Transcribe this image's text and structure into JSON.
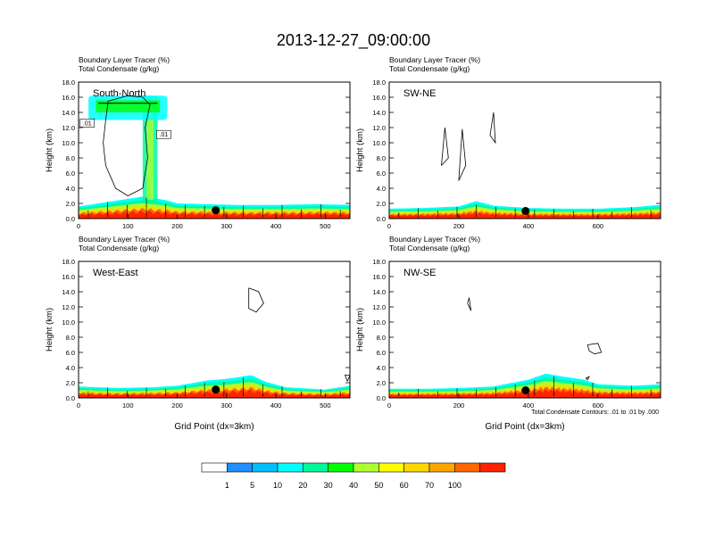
{
  "title": "2013-12-27_09:00:00",
  "panel_labels": [
    "Boundary Layer Tracer   (%)",
    "Total Condensate   (g/kg)"
  ],
  "ylabel": "Height (km)",
  "xlabel": "Grid Point (dx=3km)",
  "footnote": "Total Condensate Contours: .01 to .01 by .000",
  "contour_tags": [
    ".01",
    ".01"
  ],
  "chart_data": [
    {
      "type": "heatmap",
      "name": "South-North",
      "title": "South-North",
      "xlim": [
        0,
        550
      ],
      "ylim": [
        0,
        18
      ],
      "xticks": [
        0,
        100,
        200,
        300,
        400,
        500
      ],
      "yticks": [
        "0.0",
        "2.0",
        "4.0",
        "6.0",
        "8.0",
        "10.0",
        "12.0",
        "14.0",
        "16.0",
        "18.0"
      ],
      "surface_point": [
        278,
        1.1
      ],
      "tracer_top_km": [
        [
          0,
          1.6
        ],
        [
          30,
          1.9
        ],
        [
          60,
          2.2
        ],
        [
          90,
          2.5
        ],
        [
          130,
          2.9
        ],
        [
          160,
          2.6
        ],
        [
          180,
          2.4
        ],
        [
          200,
          2.0
        ],
        [
          260,
          1.9
        ],
        [
          320,
          1.8
        ],
        [
          400,
          1.8
        ],
        [
          480,
          1.9
        ],
        [
          550,
          1.8
        ]
      ],
      "plume": {
        "x_range": [
          130,
          160
        ],
        "top_km": 16.2,
        "anvil_x": [
          20,
          180
        ],
        "anvil_km": [
          13.0,
          16.2
        ]
      },
      "contours": [
        [
          [
            60,
            15.5
          ],
          [
            55,
            13
          ],
          [
            50,
            10
          ],
          [
            55,
            7
          ],
          [
            75,
            4
          ],
          [
            100,
            3
          ],
          [
            130,
            4
          ],
          [
            140,
            8
          ],
          [
            135,
            12
          ],
          [
            145,
            15
          ],
          [
            130,
            16
          ],
          [
            100,
            16.2
          ],
          [
            60,
            15.5
          ]
        ]
      ]
    },
    {
      "type": "heatmap",
      "name": "SW-NE",
      "title": "SW-NE",
      "xlim": [
        0,
        780
      ],
      "ylim": [
        0,
        18
      ],
      "xticks": [
        0,
        200,
        400,
        600
      ],
      "yticks": [
        "0.0",
        "2.0",
        "4.0",
        "6.0",
        "8.0",
        "10.0",
        "12.0",
        "14.0",
        "16.0",
        "18.0"
      ],
      "surface_point": [
        392,
        1.0
      ],
      "tracer_top_km": [
        [
          0,
          1.3
        ],
        [
          100,
          1.4
        ],
        [
          200,
          1.6
        ],
        [
          250,
          2.3
        ],
        [
          300,
          1.7
        ],
        [
          400,
          1.4
        ],
        [
          500,
          1.3
        ],
        [
          600,
          1.3
        ],
        [
          700,
          1.5
        ],
        [
          780,
          1.8
        ]
      ],
      "contours": [
        [
          [
            150,
            7
          ],
          [
            160,
            12
          ],
          [
            170,
            8
          ],
          [
            150,
            7
          ]
        ],
        [
          [
            200,
            5
          ],
          [
            210,
            11.8
          ],
          [
            220,
            7
          ],
          [
            200,
            5
          ]
        ],
        [
          [
            290,
            11
          ],
          [
            300,
            14
          ],
          [
            305,
            10
          ],
          [
            290,
            11
          ]
        ]
      ]
    },
    {
      "type": "heatmap",
      "name": "West-East",
      "title": "West-East",
      "xlim": [
        0,
        550
      ],
      "ylim": [
        0,
        18
      ],
      "xticks": [
        0,
        100,
        200,
        300,
        400,
        500
      ],
      "yticks": [
        "0.0",
        "2.0",
        "4.0",
        "6.0",
        "8.0",
        "10.0",
        "12.0",
        "14.0",
        "16.0",
        "18.0"
      ],
      "surface_point": [
        278,
        1.1
      ],
      "tracer_top_km": [
        [
          0,
          1.5
        ],
        [
          80,
          1.3
        ],
        [
          150,
          1.4
        ],
        [
          200,
          1.6
        ],
        [
          260,
          2.3
        ],
        [
          300,
          2.5
        ],
        [
          350,
          3.0
        ],
        [
          380,
          2.1
        ],
        [
          420,
          1.4
        ],
        [
          500,
          1.1
        ],
        [
          550,
          1.6
        ]
      ],
      "contours": [
        [
          [
            345,
            14.5
          ],
          [
            365,
            14.0
          ],
          [
            375,
            12.5
          ],
          [
            360,
            11.3
          ],
          [
            345,
            11.8
          ],
          [
            345,
            14.5
          ]
        ],
        [
          [
            545,
            2.2
          ],
          [
            550,
            3.0
          ],
          [
            540,
            3.0
          ],
          [
            545,
            2.2
          ]
        ]
      ]
    },
    {
      "type": "heatmap",
      "name": "NW-SE",
      "title": "NW-SE",
      "xlim": [
        0,
        780
      ],
      "ylim": [
        0,
        18
      ],
      "xticks": [
        0,
        200,
        400,
        600
      ],
      "yticks": [
        "0.0",
        "2.0",
        "4.0",
        "6.0",
        "8.0",
        "10.0",
        "12.0",
        "14.0",
        "16.0",
        "18.0"
      ],
      "surface_point": [
        392,
        1.0
      ],
      "tracer_top_km": [
        [
          0,
          1.2
        ],
        [
          100,
          1.2
        ],
        [
          200,
          1.3
        ],
        [
          300,
          1.5
        ],
        [
          400,
          2.4
        ],
        [
          450,
          3.2
        ],
        [
          500,
          2.8
        ],
        [
          560,
          2.4
        ],
        [
          600,
          1.8
        ],
        [
          700,
          1.6
        ],
        [
          780,
          1.8
        ]
      ],
      "contours": [
        [
          [
            225,
            12.5
          ],
          [
            230,
            13.2
          ],
          [
            235,
            11.5
          ],
          [
            225,
            12.5
          ]
        ],
        [
          [
            570,
            7.0
          ],
          [
            600,
            7.2
          ],
          [
            610,
            6.0
          ],
          [
            590,
            5.8
          ],
          [
            575,
            6.2
          ],
          [
            570,
            7.0
          ]
        ],
        [
          [
            565,
            2.6
          ],
          [
            575,
            2.8
          ],
          [
            570,
            2.4
          ],
          [
            565,
            2.6
          ]
        ]
      ]
    }
  ],
  "colorbar": {
    "colors": [
      "#ffffff",
      "#1e90ff",
      "#00bfff",
      "#00ffff",
      "#00fa9a",
      "#00ff00",
      "#adff2f",
      "#ffff00",
      "#ffd700",
      "#ffa500",
      "#ff6600",
      "#ff2200"
    ],
    "tick_labels": [
      "1",
      "5",
      "10",
      "20",
      "30",
      "40",
      "50",
      "60",
      "70",
      "100"
    ]
  }
}
